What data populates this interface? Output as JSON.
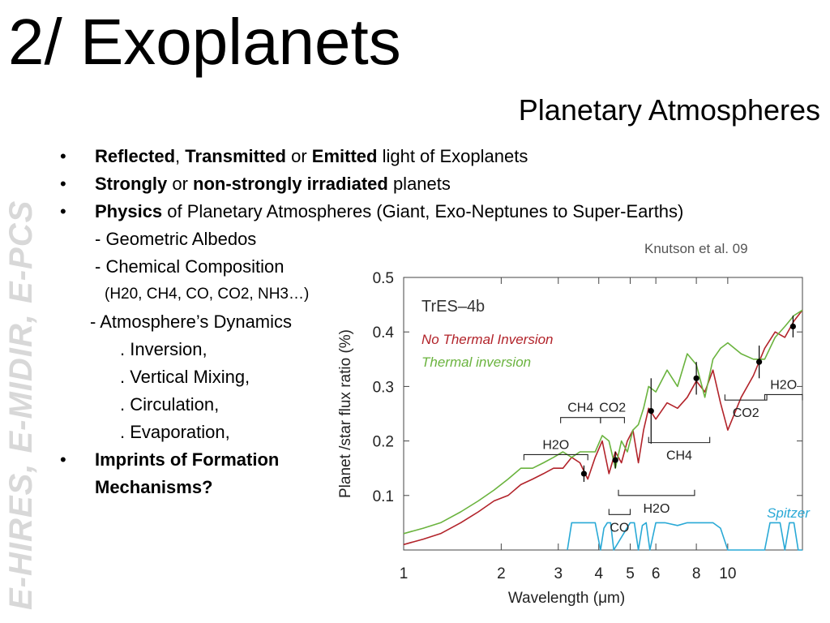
{
  "slide": {
    "title": "2/ Exoplanets",
    "subtitle": "Planetary Atmospheres",
    "side_label": "E-HIRES, E-MIDIR, E-PCS"
  },
  "bullets": {
    "b1": {
      "part1": "Reflected",
      "sep1": ", ",
      "part2": "Transmitted",
      "sep2": " or ",
      "part3": "Emitted",
      "rest": " light of Exoplanets"
    },
    "b2": {
      "part1": "Strongly",
      "sep1": " or ",
      "part2": "non-strongly irradiated",
      "rest": " planets"
    },
    "b3": {
      "part1": "Physics",
      "rest": " of Planetary Atmospheres (Giant, Exo-Neptunes to Super-Earths)"
    },
    "sub_items": [
      "- Geometric Albedos",
      "- Chemical Composition",
      "(H20, CH4, CO, CO2, NH3…)",
      "- Atmosphere’s Dynamics",
      ". Inversion,",
      ". Vertical Mixing,",
      ". Circulation,",
      ". Evaporation,"
    ],
    "b4": {
      "line1": "Imprints of Formation",
      "line2": "Mechanisms?"
    },
    "bullet_char": "•"
  },
  "credit": "Knutson et al. 09",
  "chart_data": {
    "type": "line",
    "title": "TrES–4b",
    "xlabel": "Wavelength (μm)",
    "ylabel": "Planet /star flux ratio (%)",
    "xscale": "log",
    "xlim": [
      1,
      17
    ],
    "ylim": [
      0.0,
      0.5
    ],
    "x_ticks": [
      1,
      2,
      3,
      4,
      5,
      6,
      8,
      10
    ],
    "y_ticks": [
      0.1,
      0.2,
      0.3,
      0.4,
      0.5
    ],
    "series": [
      {
        "name": "No Thermal Inversion",
        "color": "#b2232a",
        "x": [
          1.0,
          1.15,
          1.3,
          1.5,
          1.7,
          1.9,
          2.1,
          2.3,
          2.5,
          2.7,
          2.9,
          3.1,
          3.3,
          3.5,
          3.7,
          3.9,
          4.1,
          4.3,
          4.5,
          4.7,
          4.9,
          5.1,
          5.3,
          5.5,
          5.7,
          6.0,
          6.5,
          7.0,
          7.5,
          8.0,
          8.5,
          9.0,
          9.5,
          10.0,
          11.0,
          12.0,
          13.0,
          14.0,
          15.0,
          16.0,
          17.0
        ],
        "y": [
          0.01,
          0.02,
          0.03,
          0.05,
          0.07,
          0.09,
          0.1,
          0.12,
          0.13,
          0.14,
          0.15,
          0.15,
          0.17,
          0.16,
          0.13,
          0.17,
          0.2,
          0.14,
          0.18,
          0.16,
          0.2,
          0.22,
          0.16,
          0.22,
          0.26,
          0.24,
          0.27,
          0.26,
          0.28,
          0.31,
          0.29,
          0.33,
          0.27,
          0.22,
          0.28,
          0.32,
          0.37,
          0.4,
          0.39,
          0.42,
          0.44
        ]
      },
      {
        "name": "Thermal inversion",
        "color": "#6ab33e",
        "x": [
          1.0,
          1.15,
          1.3,
          1.5,
          1.7,
          1.9,
          2.1,
          2.3,
          2.5,
          2.7,
          2.9,
          3.1,
          3.3,
          3.5,
          3.7,
          3.9,
          4.1,
          4.3,
          4.5,
          4.7,
          4.9,
          5.1,
          5.3,
          5.5,
          5.7,
          6.0,
          6.5,
          7.0,
          7.5,
          8.0,
          8.5,
          9.0,
          9.5,
          10.0,
          11.0,
          12.0,
          13.0,
          14.0,
          15.0,
          16.0,
          17.0
        ],
        "y": [
          0.03,
          0.04,
          0.05,
          0.07,
          0.09,
          0.11,
          0.13,
          0.15,
          0.15,
          0.16,
          0.17,
          0.18,
          0.17,
          0.18,
          0.18,
          0.18,
          0.21,
          0.2,
          0.15,
          0.2,
          0.18,
          0.22,
          0.23,
          0.26,
          0.3,
          0.29,
          0.33,
          0.3,
          0.36,
          0.34,
          0.28,
          0.35,
          0.37,
          0.38,
          0.36,
          0.35,
          0.35,
          0.39,
          0.41,
          0.43,
          0.44
        ]
      },
      {
        "name": "Spitzer",
        "color": "#29a9d6",
        "x": [
          3.2,
          3.3,
          3.9,
          4.05,
          4.15,
          4.25,
          4.35,
          4.45,
          5.0,
          5.15,
          5.3,
          5.45,
          5.6,
          5.75,
          6.0,
          6.4,
          7.0,
          7.5,
          8.0,
          9.0,
          9.5,
          10.0,
          13.0,
          13.5,
          14.0,
          14.5,
          15.0,
          15.5,
          16.0,
          16.5,
          17.0
        ],
        "y": [
          0.0,
          0.05,
          0.05,
          0.0,
          0.04,
          0.05,
          0.05,
          0.0,
          0.05,
          0.05,
          0.0,
          0.045,
          0.05,
          0.0,
          0.05,
          0.05,
          0.045,
          0.05,
          0.05,
          0.05,
          0.04,
          0.0,
          0.0,
          0.05,
          0.05,
          0.05,
          0.0,
          0.05,
          0.05,
          0.0,
          0.0
        ]
      }
    ],
    "observations": {
      "x": [
        3.6,
        4.5,
        5.8,
        8.0,
        12.5,
        15.9
      ],
      "y": [
        0.14,
        0.165,
        0.255,
        0.315,
        0.345,
        0.41
      ],
      "err": [
        0.015,
        0.015,
        0.06,
        0.03,
        0.03,
        0.02
      ]
    },
    "annotations": [
      {
        "text": "No Thermal Inversion",
        "color": "#b2232a"
      },
      {
        "text": "Thermal inversion",
        "color": "#6ab33e"
      },
      {
        "text": "Spitzer",
        "color": "#29a9d6"
      }
    ],
    "molecule_labels": [
      "H2O",
      "CH4",
      "CO2",
      "CH4",
      "H2O",
      "CO",
      "H2O",
      "CO2"
    ]
  }
}
